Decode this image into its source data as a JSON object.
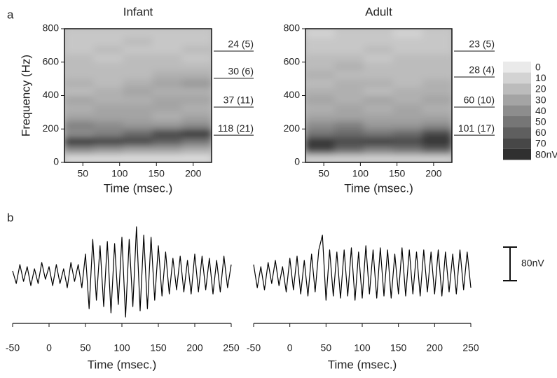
{
  "panel_labels": [
    "a",
    "b"
  ],
  "chart_data": [
    {
      "type": "heatmap",
      "title": "Infant",
      "x_label": "Time (msec.)",
      "y_label": "Frequency (Hz)",
      "xlim": [
        25,
        225
      ],
      "ylim": [
        0,
        800
      ],
      "xticks": [
        50,
        100,
        150,
        200
      ],
      "yticks": [
        0,
        200,
        400,
        600,
        800
      ],
      "x_edges": [
        25,
        65,
        105,
        145,
        185,
        225
      ],
      "y_edges": [
        0,
        50,
        100,
        150,
        200,
        250,
        300,
        350,
        400,
        450,
        500,
        550,
        600,
        650,
        700,
        750,
        800
      ],
      "z": [
        [
          5,
          5,
          5,
          5,
          5
        ],
        [
          40,
          35,
          30,
          30,
          25
        ],
        [
          80,
          75,
          70,
          60,
          50
        ],
        [
          40,
          45,
          55,
          70,
          80
        ],
        [
          45,
          40,
          35,
          35,
          40
        ],
        [
          30,
          30,
          30,
          25,
          30
        ],
        [
          25,
          30,
          30,
          30,
          25
        ],
        [
          30,
          25,
          25,
          30,
          30
        ],
        [
          20,
          25,
          30,
          25,
          25
        ],
        [
          25,
          20,
          25,
          30,
          35
        ],
        [
          20,
          20,
          20,
          25,
          25
        ],
        [
          20,
          20,
          20,
          20,
          20
        ],
        [
          20,
          15,
          20,
          20,
          15
        ],
        [
          15,
          20,
          15,
          15,
          20
        ],
        [
          15,
          15,
          20,
          15,
          15
        ],
        [
          15,
          15,
          15,
          15,
          15
        ]
      ],
      "annotations": [
        {
          "text": "24 (5)",
          "y": 666
        },
        {
          "text": "30 (6)",
          "y": 503
        },
        {
          "text": "37 (11)",
          "y": 331
        },
        {
          "text": "118 (21)",
          "y": 163
        }
      ]
    },
    {
      "type": "heatmap",
      "title": "Adult",
      "x_label": "Time (msec.)",
      "xlim": [
        25,
        225
      ],
      "ylim": [
        0,
        800
      ],
      "xticks": [
        50,
        100,
        150,
        200
      ],
      "yticks": [
        0,
        200,
        400,
        600,
        800
      ],
      "x_edges": [
        25,
        65,
        105,
        145,
        185,
        225
      ],
      "y_edges": [
        0,
        50,
        100,
        150,
        200,
        250,
        300,
        350,
        400,
        450,
        500,
        550,
        600,
        650,
        700,
        750,
        800
      ],
      "z": [
        [
          10,
          10,
          10,
          10,
          10
        ],
        [
          70,
          55,
          45,
          50,
          60
        ],
        [
          80,
          70,
          75,
          70,
          80
        ],
        [
          50,
          55,
          50,
          55,
          70
        ],
        [
          40,
          45,
          35,
          35,
          40
        ],
        [
          30,
          30,
          30,
          30,
          30
        ],
        [
          25,
          30,
          25,
          30,
          25
        ],
        [
          30,
          25,
          30,
          25,
          30
        ],
        [
          25,
          25,
          20,
          25,
          25
        ],
        [
          20,
          25,
          25,
          20,
          25
        ],
        [
          25,
          20,
          20,
          20,
          20
        ],
        [
          20,
          25,
          20,
          20,
          20
        ],
        [
          20,
          20,
          15,
          20,
          20
        ],
        [
          15,
          15,
          20,
          15,
          15
        ],
        [
          15,
          15,
          15,
          15,
          15
        ],
        [
          10,
          15,
          15,
          10,
          15
        ]
      ],
      "annotations": [
        {
          "text": "23 (5)",
          "y": 666
        },
        {
          "text": "28 (4)",
          "y": 511
        },
        {
          "text": "60 (10)",
          "y": 331
        },
        {
          "text": "101 (17)",
          "y": 163
        }
      ],
      "colorbar": {
        "ticks": [
          0,
          10,
          20,
          30,
          40,
          50,
          60,
          70,
          {
            "value": 80,
            "label": "80nV"
          }
        ]
      }
    },
    {
      "type": "line",
      "x_label": "Time (msec.)",
      "color": "#000000",
      "xlim": [
        -50,
        250
      ],
      "ylim": [
        -140,
        140
      ],
      "xticks": [
        -50,
        0,
        50,
        100,
        150,
        200,
        250
      ],
      "x": [
        -50,
        -45,
        -40,
        -35,
        -30,
        -25,
        -20,
        -15,
        -10,
        -5,
        0,
        5,
        10,
        15,
        20,
        25,
        30,
        35,
        40,
        45,
        50,
        55,
        60,
        65,
        70,
        75,
        80,
        85,
        90,
        95,
        100,
        105,
        110,
        115,
        120,
        125,
        130,
        135,
        140,
        145,
        150,
        155,
        160,
        165,
        170,
        175,
        180,
        185,
        190,
        195,
        200,
        205,
        210,
        215,
        220,
        225,
        230,
        235,
        240,
        245,
        250
      ],
      "values": [
        10,
        -20,
        25,
        -15,
        20,
        -25,
        15,
        -20,
        30,
        -10,
        20,
        -25,
        25,
        -20,
        15,
        -30,
        30,
        -15,
        25,
        -30,
        50,
        -80,
        85,
        -60,
        70,
        -75,
        80,
        -90,
        75,
        -70,
        90,
        -100,
        85,
        -75,
        115,
        -85,
        95,
        -80,
        90,
        -60,
        70,
        -50,
        55,
        -45,
        40,
        -35,
        45,
        -40,
        35,
        -45,
        50,
        -40,
        45,
        -35,
        40,
        -45,
        35,
        -40,
        45,
        -30,
        25
      ]
    },
    {
      "type": "line",
      "x_label": "Time (msec.)",
      "color": "#000000",
      "xlim": [
        -50,
        250
      ],
      "ylim": [
        -140,
        140
      ],
      "xticks": [
        -50,
        0,
        50,
        100,
        150,
        200,
        250
      ],
      "x": [
        -50,
        -45,
        -40,
        -35,
        -30,
        -25,
        -20,
        -15,
        -10,
        -5,
        0,
        5,
        10,
        15,
        20,
        25,
        30,
        35,
        40,
        45,
        50,
        55,
        60,
        65,
        70,
        75,
        80,
        85,
        90,
        95,
        100,
        105,
        110,
        115,
        120,
        125,
        130,
        135,
        140,
        145,
        150,
        155,
        160,
        165,
        170,
        175,
        180,
        185,
        190,
        195,
        200,
        205,
        210,
        215,
        220,
        225,
        230,
        235,
        240,
        245,
        250
      ],
      "values": [
        25,
        -30,
        20,
        -35,
        30,
        -20,
        35,
        -25,
        20,
        -40,
        40,
        -35,
        45,
        -45,
        35,
        -50,
        50,
        -40,
        60,
        95,
        -60,
        60,
        -50,
        55,
        -55,
        60,
        -50,
        65,
        -60,
        55,
        -55,
        70,
        -45,
        60,
        -55,
        65,
        -50,
        60,
        -55,
        50,
        -45,
        65,
        -50,
        60,
        -45,
        55,
        -50,
        60,
        -40,
        55,
        -45,
        60,
        -50,
        55,
        -40,
        50,
        -45,
        60,
        -35,
        55,
        -30
      ],
      "scale_bar": {
        "value": 80,
        "label": "80nV"
      }
    }
  ]
}
